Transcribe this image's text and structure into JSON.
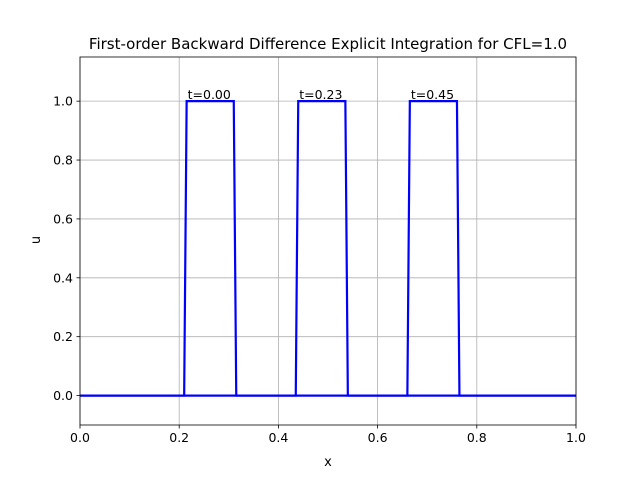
{
  "chart_data": {
    "type": "line",
    "title": "First-order Backward Difference Explicit Integration for  CFL=1.0",
    "xlabel": "x",
    "ylabel": "u",
    "xlim": [
      0.0,
      1.0
    ],
    "ylim": [
      -0.1,
      1.15
    ],
    "grid": true,
    "line_color": "#0000ff",
    "x_ticks": [
      0.0,
      0.2,
      0.4,
      0.6,
      0.8,
      1.0
    ],
    "x_tick_labels": [
      "0.0",
      "0.2",
      "0.4",
      "0.6",
      "0.8",
      "1.0"
    ],
    "y_ticks": [
      0.0,
      0.2,
      0.4,
      0.6,
      0.8,
      1.0
    ],
    "y_tick_labels": [
      "0.0",
      "0.2",
      "0.4",
      "0.6",
      "0.8",
      "1.0"
    ],
    "series": [
      {
        "x": [
          0.0,
          0.21,
          0.215,
          0.31,
          0.315,
          1.0
        ],
        "y": [
          0,
          0,
          1,
          1,
          0,
          0
        ]
      },
      {
        "x": [
          0.0,
          0.435,
          0.44,
          0.535,
          0.54,
          1.0
        ],
        "y": [
          0,
          0,
          1,
          1,
          0,
          0
        ]
      },
      {
        "x": [
          0.0,
          0.66,
          0.665,
          0.76,
          0.765,
          1.0
        ],
        "y": [
          0,
          0,
          1,
          1,
          0,
          0
        ]
      }
    ],
    "annotations": [
      {
        "text": "t=0.00",
        "x": 0.215,
        "y": 1.0
      },
      {
        "text": "t=0.23",
        "x": 0.44,
        "y": 1.0
      },
      {
        "text": "t=0.45",
        "x": 0.665,
        "y": 1.0
      }
    ]
  }
}
